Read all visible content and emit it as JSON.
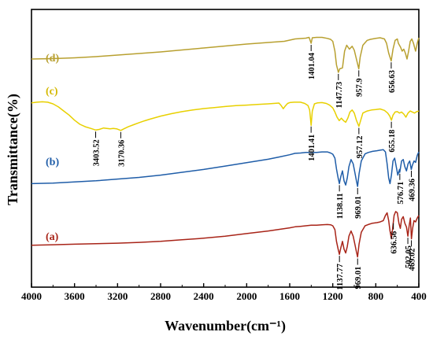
{
  "chart_data": {
    "type": "line",
    "xlabel": "Wavenumber(cm⁻¹)",
    "ylabel": "Transmittance(%)",
    "x_ticks": [
      4000,
      3600,
      3200,
      2800,
      2400,
      2000,
      1600,
      1200,
      800,
      400
    ],
    "xlim": [
      4000,
      400
    ],
    "x_reversed": true,
    "series": [
      {
        "name": "(d)",
        "color": "#B8A030",
        "label_color": "#B8A030",
        "points": [
          [
            4000,
            0.8
          ],
          [
            3800,
            0.82
          ],
          [
            3600,
            0.86
          ],
          [
            3400,
            0.92
          ],
          [
            3200,
            1.0
          ],
          [
            3000,
            1.08
          ],
          [
            2800,
            1.16
          ],
          [
            2600,
            1.26
          ],
          [
            2400,
            1.36
          ],
          [
            2200,
            1.46
          ],
          [
            2000,
            1.56
          ],
          [
            1800,
            1.64
          ],
          [
            1650,
            1.7
          ],
          [
            1600,
            1.76
          ],
          [
            1550,
            1.82
          ],
          [
            1500,
            1.84
          ],
          [
            1450,
            1.86
          ],
          [
            1420,
            1.9
          ],
          [
            1401,
            1.6
          ],
          [
            1390,
            1.88
          ],
          [
            1350,
            1.9
          ],
          [
            1300,
            1.9
          ],
          [
            1250,
            1.85
          ],
          [
            1220,
            1.8
          ],
          [
            1200,
            1.7
          ],
          [
            1180,
            1.2
          ],
          [
            1165,
            0.5
          ],
          [
            1148,
            0.12
          ],
          [
            1135,
            0.3
          ],
          [
            1110,
            0.35
          ],
          [
            1090,
            1.2
          ],
          [
            1070,
            1.5
          ],
          [
            1045,
            1.3
          ],
          [
            1020,
            1.45
          ],
          [
            1000,
            1.25
          ],
          [
            980,
            0.8
          ],
          [
            958,
            0.3
          ],
          [
            945,
            0.9
          ],
          [
            920,
            1.5
          ],
          [
            880,
            1.75
          ],
          [
            850,
            1.8
          ],
          [
            800,
            1.85
          ],
          [
            760,
            1.88
          ],
          [
            720,
            1.82
          ],
          [
            700,
            1.6
          ],
          [
            680,
            1.1
          ],
          [
            657,
            0.7
          ],
          [
            640,
            1.3
          ],
          [
            620,
            1.75
          ],
          [
            600,
            1.82
          ],
          [
            590,
            1.6
          ],
          [
            570,
            1.4
          ],
          [
            555,
            1.2
          ],
          [
            540,
            1.3
          ],
          [
            525,
            1.1
          ],
          [
            510,
            0.8
          ],
          [
            495,
            1.2
          ],
          [
            480,
            1.7
          ],
          [
            465,
            1.82
          ],
          [
            450,
            1.6
          ],
          [
            430,
            1.2
          ],
          [
            415,
            1.6
          ],
          [
            400,
            1.88
          ]
        ],
        "peaks": [
          1401.04,
          1147.73,
          957.9,
          656.63
        ]
      },
      {
        "name": "(c)",
        "color": "#E8D000",
        "label_color": "#D4B800",
        "points": [
          [
            4000,
            0.55
          ],
          [
            3950,
            0.58
          ],
          [
            3900,
            0.6
          ],
          [
            3850,
            0.58
          ],
          [
            3800,
            0.5
          ],
          [
            3750,
            0.35
          ],
          [
            3700,
            0.15
          ],
          [
            3650,
            -0.05
          ],
          [
            3600,
            -0.3
          ],
          [
            3550,
            -0.5
          ],
          [
            3500,
            -0.62
          ],
          [
            3450,
            -0.7
          ],
          [
            3403,
            -0.78
          ],
          [
            3370,
            -0.75
          ],
          [
            3330,
            -0.68
          ],
          [
            3300,
            -0.7
          ],
          [
            3270,
            -0.72
          ],
          [
            3240,
            -0.7
          ],
          [
            3210,
            -0.72
          ],
          [
            3170,
            -0.8
          ],
          [
            3140,
            -0.72
          ],
          [
            3100,
            -0.62
          ],
          [
            3050,
            -0.52
          ],
          [
            3000,
            -0.42
          ],
          [
            2950,
            -0.33
          ],
          [
            2900,
            -0.25
          ],
          [
            2800,
            -0.1
          ],
          [
            2700,
            0.02
          ],
          [
            2600,
            0.12
          ],
          [
            2500,
            0.2
          ],
          [
            2400,
            0.27
          ],
          [
            2300,
            0.32
          ],
          [
            2200,
            0.37
          ],
          [
            2100,
            0.41
          ],
          [
            2000,
            0.44
          ],
          [
            1900,
            0.47
          ],
          [
            1800,
            0.5
          ],
          [
            1750,
            0.52
          ],
          [
            1700,
            0.54
          ],
          [
            1680,
            0.42
          ],
          [
            1660,
            0.26
          ],
          [
            1640,
            0.4
          ],
          [
            1620,
            0.52
          ],
          [
            1600,
            0.56
          ],
          [
            1560,
            0.58
          ],
          [
            1500,
            0.58
          ],
          [
            1460,
            0.52
          ],
          [
            1430,
            0.42
          ],
          [
            1415,
            0.2
          ],
          [
            1401,
            -0.55
          ],
          [
            1390,
            0.15
          ],
          [
            1370,
            0.5
          ],
          [
            1340,
            0.55
          ],
          [
            1300,
            0.56
          ],
          [
            1260,
            0.52
          ],
          [
            1230,
            0.44
          ],
          [
            1200,
            0.3
          ],
          [
            1180,
            0.1
          ],
          [
            1160,
            -0.15
          ],
          [
            1140,
            -0.32
          ],
          [
            1120,
            -0.2
          ],
          [
            1100,
            -0.32
          ],
          [
            1080,
            -0.4
          ],
          [
            1060,
            -0.2
          ],
          [
            1040,
            0.1
          ],
          [
            1020,
            0.2
          ],
          [
            1000,
            0.05
          ],
          [
            980,
            -0.3
          ],
          [
            957,
            -0.6
          ],
          [
            940,
            -0.3
          ],
          [
            920,
            0.05
          ],
          [
            880,
            0.15
          ],
          [
            840,
            0.2
          ],
          [
            800,
            0.22
          ],
          [
            760,
            0.25
          ],
          [
            720,
            0.18
          ],
          [
            690,
            0.05
          ],
          [
            670,
            -0.1
          ],
          [
            655,
            -0.3
          ],
          [
            640,
            -0.05
          ],
          [
            620,
            0.1
          ],
          [
            600,
            0.12
          ],
          [
            580,
            0.05
          ],
          [
            560,
            0.1
          ],
          [
            540,
            0.0
          ],
          [
            520,
            -0.15
          ],
          [
            500,
            0.05
          ],
          [
            480,
            0.15
          ],
          [
            460,
            0.1
          ],
          [
            440,
            0.05
          ],
          [
            420,
            0.12
          ],
          [
            400,
            0.15
          ]
        ],
        "peaks": [
          3403.52,
          3170.36,
          1401.41,
          957.12,
          655.18
        ]
      },
      {
        "name": "(b)",
        "color": "#1F5DA8",
        "label_color": "#1F5DA8",
        "points": [
          [
            4000,
            0.1
          ],
          [
            3800,
            0.12
          ],
          [
            3600,
            0.16
          ],
          [
            3400,
            0.2
          ],
          [
            3200,
            0.26
          ],
          [
            3000,
            0.32
          ],
          [
            2800,
            0.4
          ],
          [
            2600,
            0.5
          ],
          [
            2400,
            0.6
          ],
          [
            2200,
            0.72
          ],
          [
            2000,
            0.84
          ],
          [
            1800,
            0.96
          ],
          [
            1700,
            1.04
          ],
          [
            1600,
            1.12
          ],
          [
            1550,
            1.17
          ],
          [
            1500,
            1.18
          ],
          [
            1450,
            1.2
          ],
          [
            1400,
            1.2
          ],
          [
            1350,
            1.2
          ],
          [
            1300,
            1.22
          ],
          [
            1250,
            1.22
          ],
          [
            1220,
            1.18
          ],
          [
            1200,
            1.14
          ],
          [
            1180,
            1.0
          ],
          [
            1165,
            0.62
          ],
          [
            1150,
            0.3
          ],
          [
            1138,
            0.1
          ],
          [
            1125,
            0.35
          ],
          [
            1110,
            0.55
          ],
          [
            1095,
            0.2
          ],
          [
            1080,
            0.05
          ],
          [
            1065,
            0.3
          ],
          [
            1050,
            0.7
          ],
          [
            1030,
            0.95
          ],
          [
            1010,
            0.8
          ],
          [
            995,
            0.5
          ],
          [
            980,
            0.2
          ],
          [
            969,
            0.0
          ],
          [
            955,
            0.45
          ],
          [
            935,
            0.9
          ],
          [
            900,
            1.15
          ],
          [
            870,
            1.2
          ],
          [
            830,
            1.24
          ],
          [
            790,
            1.26
          ],
          [
            760,
            1.28
          ],
          [
            730,
            1.3
          ],
          [
            710,
            1.22
          ],
          [
            695,
            0.8
          ],
          [
            680,
            0.3
          ],
          [
            668,
            0.1
          ],
          [
            655,
            0.4
          ],
          [
            640,
            0.9
          ],
          [
            625,
            1.0
          ],
          [
            610,
            0.7
          ],
          [
            595,
            0.4
          ],
          [
            580,
            0.6
          ],
          [
            577,
            0.5
          ],
          [
            560,
            0.9
          ],
          [
            545,
            0.95
          ],
          [
            530,
            0.7
          ],
          [
            515,
            0.55
          ],
          [
            500,
            0.8
          ],
          [
            485,
            0.9
          ],
          [
            470,
            0.6
          ],
          [
            460,
            0.75
          ],
          [
            445,
            0.9
          ],
          [
            430,
            0.85
          ],
          [
            415,
            1.1
          ],
          [
            400,
            1.22
          ]
        ],
        "peaks": [
          1138.11,
          969.01,
          576.71,
          469.36
        ]
      },
      {
        "name": "(a)",
        "color": "#A82418",
        "label_color": "#A82418",
        "points": [
          [
            4000,
            0.25
          ],
          [
            3800,
            0.27
          ],
          [
            3600,
            0.29
          ],
          [
            3400,
            0.31
          ],
          [
            3200,
            0.33
          ],
          [
            3000,
            0.36
          ],
          [
            2800,
            0.4
          ],
          [
            2600,
            0.46
          ],
          [
            2400,
            0.52
          ],
          [
            2200,
            0.6
          ],
          [
            2000,
            0.7
          ],
          [
            1800,
            0.8
          ],
          [
            1700,
            0.86
          ],
          [
            1600,
            0.92
          ],
          [
            1550,
            0.96
          ],
          [
            1500,
            0.98
          ],
          [
            1450,
            1.0
          ],
          [
            1400,
            1.02
          ],
          [
            1350,
            1.02
          ],
          [
            1300,
            1.04
          ],
          [
            1250,
            1.05
          ],
          [
            1220,
            1.04
          ],
          [
            1200,
            1.0
          ],
          [
            1180,
            0.85
          ],
          [
            1165,
            0.4
          ],
          [
            1150,
            0.1
          ],
          [
            1138,
            -0.1
          ],
          [
            1125,
            0.15
          ],
          [
            1110,
            0.4
          ],
          [
            1095,
            0.1
          ],
          [
            1080,
            -0.05
          ],
          [
            1065,
            0.2
          ],
          [
            1050,
            0.6
          ],
          [
            1030,
            0.8
          ],
          [
            1010,
            0.6
          ],
          [
            995,
            0.3
          ],
          [
            980,
            0.0
          ],
          [
            969,
            -0.2
          ],
          [
            955,
            0.3
          ],
          [
            935,
            0.75
          ],
          [
            900,
            1.0
          ],
          [
            870,
            1.05
          ],
          [
            830,
            1.1
          ],
          [
            790,
            1.12
          ],
          [
            760,
            1.15
          ],
          [
            730,
            1.2
          ],
          [
            710,
            1.4
          ],
          [
            695,
            1.5
          ],
          [
            680,
            1.2
          ],
          [
            668,
            0.8
          ],
          [
            655,
            0.5
          ],
          [
            645,
            0.85
          ],
          [
            630,
            1.4
          ],
          [
            615,
            1.55
          ],
          [
            600,
            1.5
          ],
          [
            585,
            1.1
          ],
          [
            572,
            0.9
          ],
          [
            560,
            1.25
          ],
          [
            545,
            1.35
          ],
          [
            530,
            1.1
          ],
          [
            515,
            0.95
          ],
          [
            502,
            0.6
          ],
          [
            490,
            1.0
          ],
          [
            478,
            1.3
          ],
          [
            469,
            0.5
          ],
          [
            458,
            0.9
          ],
          [
            445,
            1.2
          ],
          [
            430,
            1.15
          ],
          [
            415,
            1.3
          ],
          [
            400,
            1.4
          ]
        ],
        "peaks": [
          1137.77,
          969.01,
          636.56,
          502.05,
          469.02
        ]
      }
    ],
    "peak_label_texts": {
      "d": [
        "1401.04",
        "1147.73",
        "957.9",
        "656.63"
      ],
      "c": [
        "3403.52",
        "3170.36",
        "1401.41",
        "957.12",
        "655.18"
      ],
      "b": [
        "1138.11",
        "969.01",
        "576.71",
        "469.36"
      ],
      "a": [
        "1137.77",
        "969.01",
        "636.56",
        "502.05",
        "469.02"
      ]
    }
  }
}
